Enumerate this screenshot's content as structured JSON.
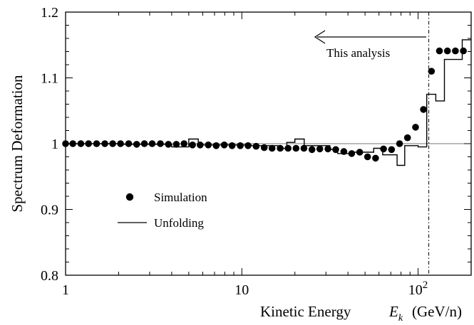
{
  "chart_data": {
    "type": "scatter",
    "title": "",
    "xlabel": "Kinetic Energy",
    "xlabel_symbol": "E",
    "xlabel_symbol_sub": "k",
    "xlabel_unit": "(GeV/n)",
    "ylabel": "Spectrum Deformation",
    "x_scale": "log",
    "xlim": [
      1,
      200
    ],
    "ylim": [
      0.8,
      1.2
    ],
    "x_ticks": [
      {
        "value": 1,
        "label": "1"
      },
      {
        "value": 10,
        "label": "10"
      },
      {
        "value": 100,
        "label": "10",
        "sup": "2"
      }
    ],
    "y_ticks": [
      {
        "value": 0.8,
        "label": "0.8"
      },
      {
        "value": 0.9,
        "label": "0.9"
      },
      {
        "value": 1.0,
        "label": "1"
      },
      {
        "value": 1.1,
        "label": "1.1"
      },
      {
        "value": 1.2,
        "label": "1.2"
      }
    ],
    "reference_line": 1.0,
    "cutoff_x": 115,
    "annotation": "This analysis",
    "legend": {
      "placement": "lower-left",
      "entries": [
        {
          "label": "Simulation",
          "marker": "dot"
        },
        {
          "label": "Unfolding",
          "marker": "line"
        }
      ]
    },
    "series": [
      {
        "name": "Simulation",
        "style": "points",
        "x": [
          1.0,
          1.1,
          1.22,
          1.35,
          1.5,
          1.67,
          1.85,
          2.05,
          2.28,
          2.53,
          2.8,
          3.1,
          3.45,
          3.83,
          4.25,
          4.7,
          5.25,
          5.8,
          6.45,
          7.15,
          7.95,
          8.8,
          9.8,
          10.85,
          12.05,
          13.4,
          14.85,
          16.5,
          18.3,
          20.3,
          22.5,
          25.0,
          27.7,
          30.8,
          34.1,
          37.9,
          42.0,
          46.6,
          51.7,
          57.4,
          63.7,
          70.7,
          78.5,
          87.1,
          96.7,
          107.3,
          119.1,
          132.2,
          146.7,
          162.8,
          180.7
        ],
        "y": [
          1.0,
          1.0,
          1.0,
          1.0,
          1.0,
          1.0,
          1.0,
          1.0,
          1.0,
          0.999,
          1.0,
          1.0,
          1.0,
          0.999,
          0.999,
          1.0,
          0.998,
          0.998,
          0.998,
          0.997,
          0.998,
          0.997,
          0.997,
          0.997,
          0.996,
          0.994,
          0.993,
          0.993,
          0.993,
          0.993,
          0.993,
          0.991,
          0.992,
          0.992,
          0.991,
          0.988,
          0.985,
          0.987,
          0.98,
          0.978,
          0.992,
          0.991,
          1.0,
          1.009,
          1.025,
          1.052,
          1.11,
          1.141,
          1.141,
          1.141,
          1.141
        ]
      },
      {
        "name": "Unfolding",
        "style": "histogram",
        "edges": [
          1.0,
          1.41,
          2.0,
          2.83,
          4.0,
          5.0,
          5.66,
          8.0,
          11.3,
          16.0,
          18.0,
          20.0,
          22.6,
          31.6,
          35.0,
          42.0,
          56.0,
          63.0,
          76.0,
          84.0,
          100.0,
          112.0,
          126.0,
          141.0,
          158.0,
          178.0,
          200.0
        ],
        "values": [
          1.0,
          1.0,
          0.999,
          0.999,
          0.995,
          1.007,
          0.998,
          0.998,
          0.997,
          0.993,
          1.002,
          1.007,
          0.997,
          0.991,
          0.985,
          0.987,
          0.993,
          0.983,
          0.967,
          0.997,
          0.995,
          1.075,
          1.065,
          1.128,
          1.128,
          1.158
        ]
      }
    ]
  }
}
